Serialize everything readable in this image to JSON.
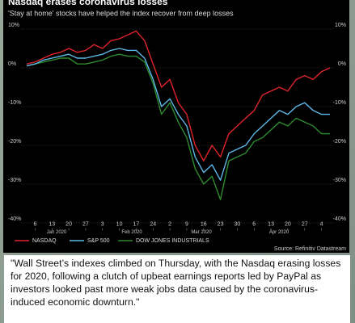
{
  "chart_data": {
    "type": "line",
    "title": "Nasdaq erases coronavirus losses",
    "subtitle": "'Stay at home' stocks have helped the index recover from deep losses",
    "categories": [
      null,
      "6",
      null,
      "13",
      null,
      "20",
      null,
      "27",
      null,
      "3",
      null,
      "10",
      null,
      "17",
      null,
      "24",
      null,
      "2",
      null,
      "9",
      null,
      "16",
      null,
      "23",
      null,
      "30",
      null,
      "6",
      null,
      "13",
      null,
      "20",
      null,
      "27",
      null,
      "4",
      null
    ],
    "month_labels": [
      "Jan 2020",
      "Feb 2020",
      "Mar 2020",
      "Apr 2020"
    ],
    "series": [
      {
        "name": "NASDAQ",
        "color": "#e0242b",
        "values": [
          1,
          1.5,
          2.5,
          3.5,
          4,
          5,
          4,
          4.5,
          6,
          5,
          7,
          7.5,
          8.5,
          9.5,
          7,
          1,
          -5,
          -3,
          -9,
          -12,
          -20,
          -24,
          -20,
          -23,
          -17,
          -15,
          -13,
          -11,
          -7,
          -6,
          -5,
          -6,
          -3,
          -2,
          -3,
          -1,
          0
        ]
      },
      {
        "name": "S&P 500",
        "color": "#5fb8e8",
        "values": [
          0.5,
          1,
          2,
          2.5,
          3,
          3.5,
          2.5,
          2.5,
          3,
          3.5,
          4.5,
          5,
          4.5,
          4.5,
          2.5,
          -3,
          -10,
          -8,
          -12,
          -15,
          -23,
          -27,
          -25,
          -29,
          -22,
          -21,
          -20,
          -17,
          -15,
          -13,
          -11,
          -12,
          -10,
          -9,
          -11,
          -12,
          -12
        ]
      },
      {
        "name": "DOW JONES INDUSTRIALS",
        "color": "#2e8b2e",
        "values": [
          0.5,
          1,
          1.5,
          2,
          2.5,
          2.5,
          1,
          1,
          1.5,
          2,
          3,
          3.5,
          3,
          3,
          1.5,
          -4,
          -12,
          -9,
          -14,
          -18,
          -26,
          -30,
          -28,
          -34,
          -24,
          -23,
          -22,
          -19,
          -18,
          -16,
          -14,
          -15,
          -13,
          -14,
          -15,
          -17,
          -17
        ]
      }
    ],
    "ylim": [
      -42,
      12
    ],
    "yticks": [
      {
        "value": 10,
        "label": "10%"
      },
      {
        "value": 0,
        "label": "0%"
      },
      {
        "value": -10,
        "label": "-10%"
      },
      {
        "value": -20,
        "label": "-20%"
      },
      {
        "value": -30,
        "label": "-30%"
      },
      {
        "value": -40,
        "label": "-40%"
      }
    ],
    "grid": true,
    "source": "Source: Refinitiv Datastream"
  },
  "caption": "\"Wall Street’s indexes climbed on Thursday, with the Nasdaq erasing losses for 2020, following a clutch of upbeat earnings reports led by PayPal as investors looked past more weak jobs data caused by the coronavirus-induced economic downturn.\""
}
